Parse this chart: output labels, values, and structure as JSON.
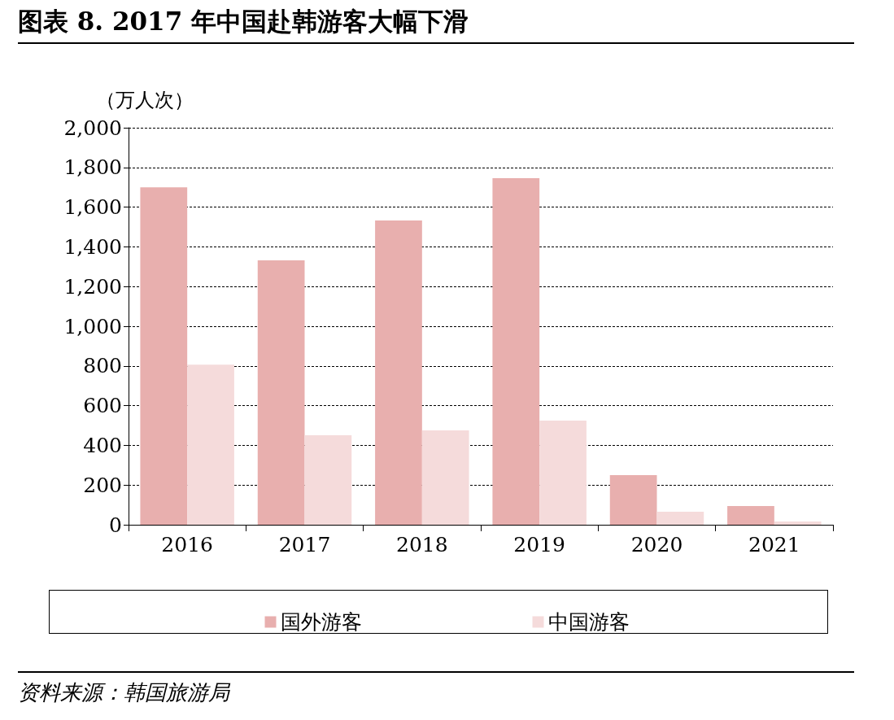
{
  "chart_data": {
    "type": "bar",
    "title": "图表 8. 2017 年中国赴韩游客大幅下滑",
    "ylabel": "（万人次）",
    "annotations": [
      "资料来源：韩国旅游局"
    ],
    "categories": [
      "2016",
      "2017",
      "2018",
      "2019",
      "2020",
      "2021"
    ],
    "series": [
      {
        "name": "国外游客",
        "color": "#e8afae",
        "values": [
          1700,
          1332,
          1533,
          1746,
          250,
          94
        ]
      },
      {
        "name": "中国游客",
        "color": "#f5dbdb",
        "values": [
          806,
          451,
          475,
          525,
          66,
          16
        ]
      }
    ],
    "ylim": [
      0,
      2000
    ],
    "yticks": [
      {
        "value": 0,
        "label": "0"
      },
      {
        "value": 200,
        "label": "200"
      },
      {
        "value": 400,
        "label": "400"
      },
      {
        "value": 600,
        "label": "600"
      },
      {
        "value": 800,
        "label": "800"
      },
      {
        "value": 1000,
        "label": "1,000"
      },
      {
        "value": 1200,
        "label": "1,200"
      },
      {
        "value": 1400,
        "label": "1,400"
      },
      {
        "value": 1600,
        "label": "1,600"
      },
      {
        "value": 1800,
        "label": "1,800"
      },
      {
        "value": 2000,
        "label": "2,000"
      }
    ],
    "grid": "y",
    "legend": "bottom"
  }
}
